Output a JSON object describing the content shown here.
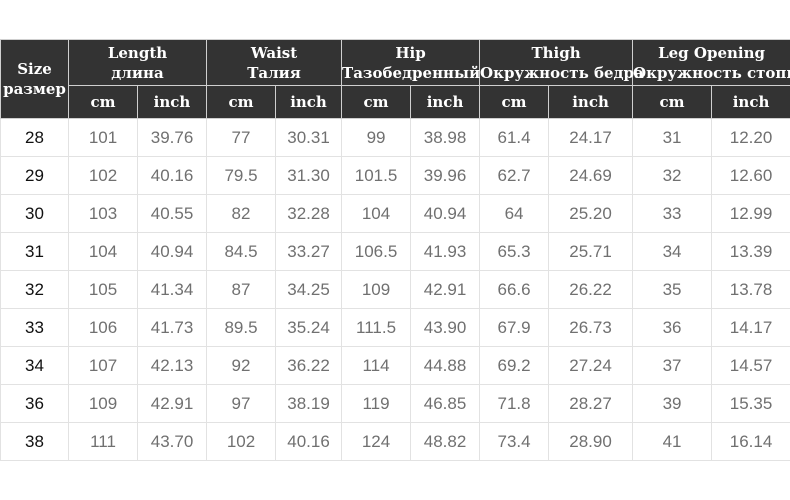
{
  "header": {
    "size": {
      "en": "Size",
      "ru": "размер"
    },
    "groups": [
      {
        "en": "Length",
        "ru": "длина"
      },
      {
        "en": "Waist",
        "ru": "Талия"
      },
      {
        "en": "Hip",
        "ru": "Тазобедренный"
      },
      {
        "en": "Thigh",
        "ru": "Окружность бедра"
      },
      {
        "en": "Leg Opening",
        "ru": "Окружность стопы"
      }
    ],
    "units": [
      "cm",
      "inch",
      "cm",
      "inch",
      "cm",
      "inch",
      "cm",
      "inch",
      "cm",
      "inch"
    ]
  },
  "rows": [
    [
      "28",
      "101",
      "39.76",
      "77",
      "30.31",
      "99",
      "38.98",
      "61.4",
      "24.17",
      "31",
      "12.20"
    ],
    [
      "29",
      "102",
      "40.16",
      "79.5",
      "31.30",
      "101.5",
      "39.96",
      "62.7",
      "24.69",
      "32",
      "12.60"
    ],
    [
      "30",
      "103",
      "40.55",
      "82",
      "32.28",
      "104",
      "40.94",
      "64",
      "25.20",
      "33",
      "12.99"
    ],
    [
      "31",
      "104",
      "40.94",
      "84.5",
      "33.27",
      "106.5",
      "41.93",
      "65.3",
      "25.71",
      "34",
      "13.39"
    ],
    [
      "32",
      "105",
      "41.34",
      "87",
      "34.25",
      "109",
      "42.91",
      "66.6",
      "26.22",
      "35",
      "13.78"
    ],
    [
      "33",
      "106",
      "41.73",
      "89.5",
      "35.24",
      "111.5",
      "43.90",
      "67.9",
      "26.73",
      "36",
      "14.17"
    ],
    [
      "34",
      "107",
      "42.13",
      "92",
      "36.22",
      "114",
      "44.88",
      "69.2",
      "27.24",
      "37",
      "14.57"
    ],
    [
      "36",
      "109",
      "42.91",
      "97",
      "38.19",
      "119",
      "46.85",
      "71.8",
      "28.27",
      "39",
      "15.35"
    ],
    [
      "38",
      "111",
      "43.70",
      "102",
      "40.16",
      "124",
      "48.82",
      "73.4",
      "28.90",
      "41",
      "16.14"
    ]
  ],
  "colors": {
    "header_bg": "#333333",
    "header_text": "#ffffff",
    "cell_text": "#707070",
    "size_text": "#111111",
    "grid": "#e2e2e2"
  }
}
